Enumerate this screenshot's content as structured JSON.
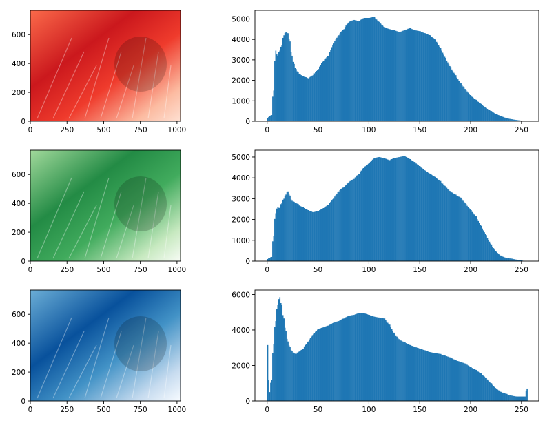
{
  "chart_data": [
    {
      "type": "heatmap",
      "colormap": "Reds",
      "xticks": [
        0,
        250,
        500,
        750,
        1000
      ],
      "yticks": [
        0,
        200,
        400,
        600
      ],
      "xlim": [
        0,
        1024
      ],
      "ylim": [
        768,
        0
      ]
    },
    {
      "type": "bar",
      "histogram": true,
      "bar_color": "#1f77b4",
      "xlim": [
        -12,
        267
      ],
      "ylim": [
        0,
        5420
      ],
      "xticks": [
        0,
        50,
        100,
        150,
        200,
        250
      ],
      "yticks": [
        0,
        1000,
        2000,
        3000,
        4000,
        5000
      ],
      "x": [
        0,
        4,
        6,
        8,
        10,
        12,
        14,
        16,
        18,
        20,
        22,
        24,
        26,
        28,
        30,
        32,
        35,
        38,
        40,
        45,
        50,
        55,
        60,
        65,
        70,
        75,
        80,
        85,
        90,
        95,
        100,
        105,
        110,
        115,
        120,
        125,
        130,
        135,
        140,
        145,
        150,
        155,
        160,
        165,
        170,
        175,
        180,
        185,
        190,
        195,
        200,
        205,
        210,
        215,
        220,
        225,
        230,
        235,
        240,
        245,
        250,
        253,
        255
      ],
      "values": [
        150,
        300,
        1500,
        3450,
        3200,
        3450,
        3700,
        4200,
        4350,
        4300,
        3900,
        3200,
        2800,
        2550,
        2400,
        2300,
        2200,
        2150,
        2100,
        2250,
        2550,
        2950,
        3200,
        3800,
        4200,
        4500,
        4850,
        4950,
        4900,
        5050,
        5050,
        5100,
        4850,
        4600,
        4500,
        4450,
        4350,
        4450,
        4550,
        4450,
        4400,
        4300,
        4200,
        4000,
        3600,
        3100,
        2650,
        2250,
        1850,
        1550,
        1250,
        1050,
        850,
        650,
        500,
        350,
        250,
        150,
        100,
        60,
        30,
        0,
        0
      ]
    },
    {
      "type": "heatmap",
      "colormap": "Greens",
      "xticks": [
        0,
        250,
        500,
        750,
        1000
      ],
      "yticks": [
        0,
        200,
        400,
        600
      ],
      "xlim": [
        0,
        1024
      ],
      "ylim": [
        768,
        0
      ]
    },
    {
      "type": "bar",
      "histogram": true,
      "bar_color": "#1f77b4",
      "xlim": [
        -12,
        267
      ],
      "ylim": [
        0,
        5330
      ],
      "xticks": [
        0,
        50,
        100,
        150,
        200,
        250
      ],
      "yticks": [
        0,
        1000,
        2000,
        3000,
        4000,
        5000
      ],
      "x": [
        0,
        4,
        6,
        8,
        10,
        12,
        14,
        16,
        18,
        20,
        22,
        24,
        26,
        28,
        30,
        32,
        35,
        38,
        40,
        45,
        50,
        55,
        60,
        65,
        70,
        75,
        80,
        85,
        90,
        95,
        100,
        105,
        110,
        115,
        120,
        125,
        130,
        135,
        140,
        145,
        150,
        155,
        160,
        165,
        170,
        175,
        180,
        185,
        190,
        195,
        200,
        205,
        210,
        215,
        220,
        225,
        230,
        235,
        240,
        245,
        250,
        253,
        255
      ],
      "values": [
        100,
        200,
        1200,
        2300,
        2600,
        2550,
        2800,
        3000,
        3200,
        3350,
        3150,
        2900,
        2850,
        2800,
        2750,
        2650,
        2600,
        2500,
        2450,
        2350,
        2400,
        2550,
        2700,
        3000,
        3350,
        3550,
        3800,
        3950,
        4200,
        4500,
        4700,
        4950,
        5000,
        4950,
        4850,
        4950,
        5000,
        5050,
        4900,
        4750,
        4550,
        4350,
        4200,
        4050,
        3850,
        3600,
        3350,
        3200,
        3050,
        2750,
        2450,
        2150,
        1700,
        1250,
        800,
        450,
        250,
        150,
        120,
        70,
        30,
        0,
        0
      ]
    },
    {
      "type": "heatmap",
      "colormap": "Blues",
      "xticks": [
        0,
        250,
        500,
        750,
        1000
      ],
      "yticks": [
        0,
        200,
        400,
        600
      ],
      "xlim": [
        0,
        1024
      ],
      "ylim": [
        768,
        0
      ]
    },
    {
      "type": "bar",
      "histogram": true,
      "bar_color": "#1f77b4",
      "xlim": [
        -12,
        267
      ],
      "ylim": [
        0,
        6250
      ],
      "xticks": [
        0,
        50,
        100,
        150,
        200,
        250
      ],
      "yticks": [
        0,
        2000,
        4000,
        6000
      ],
      "x": [
        0,
        2,
        4,
        6,
        8,
        10,
        12,
        14,
        16,
        18,
        20,
        22,
        24,
        26,
        28,
        30,
        32,
        35,
        38,
        40,
        45,
        50,
        55,
        60,
        65,
        70,
        75,
        80,
        85,
        90,
        95,
        100,
        105,
        110,
        115,
        120,
        125,
        130,
        135,
        140,
        145,
        150,
        155,
        160,
        165,
        170,
        175,
        180,
        185,
        190,
        195,
        200,
        205,
        210,
        215,
        220,
        225,
        230,
        235,
        240,
        245,
        250,
        253,
        255
      ],
      "values": [
        3150,
        500,
        1200,
        3200,
        4500,
        5400,
        5850,
        5400,
        4650,
        3950,
        3350,
        3050,
        2800,
        2700,
        2650,
        2750,
        2800,
        2950,
        3200,
        3350,
        3750,
        4050,
        4150,
        4250,
        4400,
        4500,
        4650,
        4800,
        4850,
        4950,
        4950,
        4850,
        4750,
        4700,
        4650,
        4300,
        3800,
        3450,
        3300,
        3150,
        3050,
        2950,
        2850,
        2750,
        2700,
        2650,
        2550,
        2450,
        2300,
        2200,
        2100,
        1900,
        1750,
        1550,
        1300,
        1000,
        700,
        500,
        400,
        300,
        250,
        250,
        250,
        700
      ]
    }
  ]
}
